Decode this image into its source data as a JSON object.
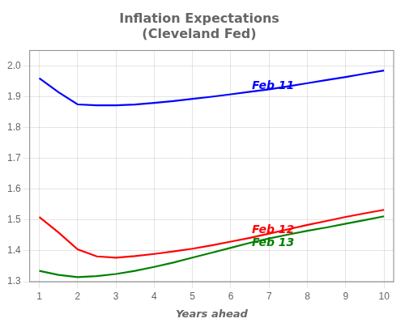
{
  "chart_data": {
    "type": "line",
    "title": "Inflation Expectations\n(Cleveland Fed)",
    "x_label": "Years ahead",
    "x": [
      1,
      1.5,
      2,
      2.5,
      3,
      3.5,
      4,
      4.5,
      5,
      5.5,
      6,
      6.5,
      7,
      7.5,
      8,
      8.5,
      9,
      9.5,
      10
    ],
    "series": [
      {
        "name": "Feb 11",
        "color": "#0000FF",
        "values": [
          1.96,
          1.915,
          1.875,
          1.872,
          1.872,
          1.875,
          1.88,
          1.886,
          1.893,
          1.9,
          1.908,
          1.916,
          1.924,
          1.934,
          1.944,
          1.954,
          1.964,
          1.975,
          1.985
        ]
      },
      {
        "name": "Feb 12",
        "color": "#FF0000",
        "values": [
          1.51,
          1.46,
          1.405,
          1.382,
          1.378,
          1.383,
          1.39,
          1.398,
          1.407,
          1.418,
          1.43,
          1.442,
          1.456,
          1.47,
          1.484,
          1.497,
          1.51,
          1.522,
          1.533
        ]
      },
      {
        "name": "Feb 13",
        "color": "#008000",
        "values": [
          1.335,
          1.322,
          1.315,
          1.318,
          1.325,
          1.335,
          1.348,
          1.362,
          1.378,
          1.394,
          1.41,
          1.426,
          1.44,
          1.453,
          1.465,
          1.476,
          1.488,
          1.5,
          1.512
        ]
      }
    ],
    "annotations": [
      {
        "text": "Feb 11",
        "x": 6.55,
        "y": 1.925,
        "color": "#0000FF"
      },
      {
        "text": "Feb 12",
        "x": 6.55,
        "y": 1.457,
        "color": "#FF0000"
      },
      {
        "text": "Feb 13",
        "x": 6.55,
        "y": 1.415,
        "color": "#008000"
      }
    ],
    "xlim": [
      0.75,
      10.25
    ],
    "ylim": [
      1.3,
      2.05
    ],
    "xticks": [
      1,
      2,
      3,
      4,
      5,
      6,
      7,
      8,
      9,
      10
    ],
    "yticks": [
      1.3,
      1.4,
      1.5,
      1.6,
      1.7,
      1.8,
      1.9,
      {
        "value": 2.0,
        "label": "2.0"
      }
    ],
    "grid": true
  }
}
